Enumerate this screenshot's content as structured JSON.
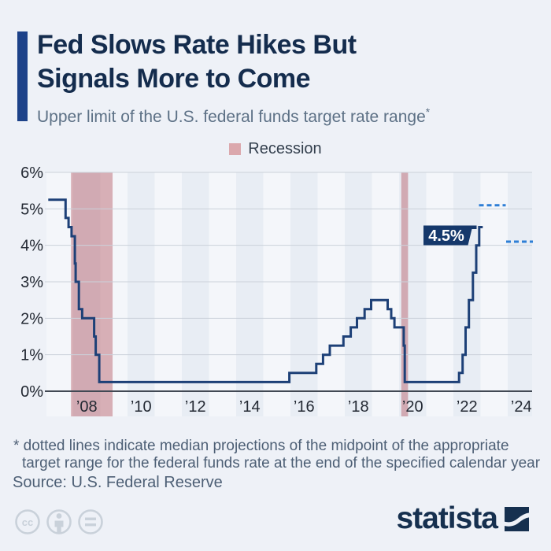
{
  "header": {
    "title_line1": "Fed Slows Rate Hikes But",
    "title_line2": "Signals More to Come",
    "subtitle": "Upper limit of the U.S. federal funds target rate range",
    "footnote_marker": "*"
  },
  "legend": {
    "label": "Recession",
    "swatch_color": "#dba8ad"
  },
  "chart_data": {
    "type": "line",
    "subtype": "step-after",
    "unit": "percent",
    "ylim": [
      0,
      6
    ],
    "y_ticks": [
      "0%",
      "1%",
      "2%",
      "3%",
      "4%",
      "5%",
      "6%"
    ],
    "x_ticks": [
      {
        "label": "’08",
        "year": 2008
      },
      {
        "label": "’10",
        "year": 2010
      },
      {
        "label": "’12",
        "year": 2012
      },
      {
        "label": "’14",
        "year": 2014
      },
      {
        "label": "’16",
        "year": 2016
      },
      {
        "label": "’18",
        "year": 2018
      },
      {
        "label": "’20",
        "year": 2020
      },
      {
        "label": "’22",
        "year": 2022
      },
      {
        "label": "’24",
        "year": 2024
      }
    ],
    "series": [
      {
        "name": "Upper limit of the U.S. federal funds target rate range",
        "color": "#1d4077",
        "points": [
          [
            2007.08,
            5.25
          ],
          [
            2007.72,
            4.75
          ],
          [
            2007.83,
            4.5
          ],
          [
            2007.94,
            4.25
          ],
          [
            2008.06,
            3.5
          ],
          [
            2008.09,
            3.0
          ],
          [
            2008.21,
            2.25
          ],
          [
            2008.33,
            2.0
          ],
          [
            2008.77,
            1.5
          ],
          [
            2008.83,
            1.0
          ],
          [
            2008.96,
            0.25
          ],
          [
            2015.96,
            0.5
          ],
          [
            2016.95,
            0.75
          ],
          [
            2017.2,
            1.0
          ],
          [
            2017.45,
            1.25
          ],
          [
            2017.95,
            1.5
          ],
          [
            2018.22,
            1.75
          ],
          [
            2018.45,
            2.0
          ],
          [
            2018.73,
            2.25
          ],
          [
            2018.97,
            2.5
          ],
          [
            2019.58,
            2.25
          ],
          [
            2019.71,
            2.0
          ],
          [
            2019.83,
            1.75
          ],
          [
            2020.17,
            1.25
          ],
          [
            2020.21,
            0.25
          ],
          [
            2022.21,
            0.5
          ],
          [
            2022.34,
            1.0
          ],
          [
            2022.45,
            1.75
          ],
          [
            2022.57,
            2.5
          ],
          [
            2022.72,
            3.25
          ],
          [
            2022.84,
            4.0
          ],
          [
            2022.95,
            4.5
          ],
          [
            2023.08,
            4.5
          ]
        ]
      }
    ],
    "recessions": [
      {
        "start": 2007.92,
        "end": 2009.45
      },
      {
        "start": 2020.08,
        "end": 2020.33
      }
    ],
    "projections": [
      {
        "year": 2023,
        "value": 5.1
      },
      {
        "year": 2024,
        "value": 4.1
      }
    ],
    "current_label": "4.5%",
    "colors": {
      "line": "#1d4077",
      "projection_dash": "#2e7fd6",
      "recession_fill": "rgba(186,104,114,0.5)",
      "label_box": "#15386b",
      "stripe_light": "#f4f6fa",
      "stripe_dark": "#e8edf4",
      "gridline": "#cbd1da",
      "axis": "#424954",
      "tick_text": "#232933"
    },
    "grid": "horizontal",
    "legend_position": "top-center"
  },
  "notes": {
    "line1": "* dotted lines indicate median projections of the midpoint of the appropriate",
    "line2": "target range for the federal funds rate at the end of the specified calendar year",
    "source": "Source: U.S. Federal Reserve"
  },
  "footer": {
    "brand": "statista",
    "brand_color": "#16304f",
    "license_icons": [
      "cc-icon",
      "attribution-icon",
      "equal-icon"
    ],
    "license_icon_color": "#c9d1da"
  }
}
